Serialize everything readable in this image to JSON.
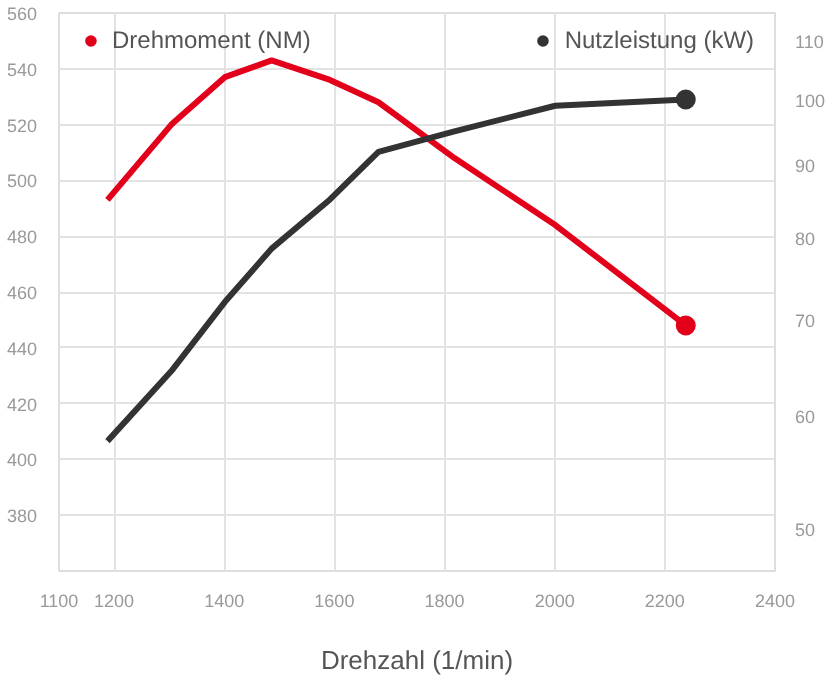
{
  "chart_data": {
    "type": "line",
    "xlabel": "Drehzahl (1/min)",
    "x": [
      1188,
      1304,
      1401,
      1486,
      1592,
      1680,
      1818,
      2001,
      2238
    ],
    "series": [
      {
        "color": "#e2001a",
        "values": [
          493,
          520,
          537,
          543,
          536,
          528,
          508,
          484,
          448
        ]
      },
      {
        "color": "#333333",
        "axis": "y2",
        "values": [
          57.6,
          64.5,
          72.1,
          78.6,
          85.1,
          91.9,
          95,
          99,
          100
        ]
      },
      {
        "name": "Drehmoment (NM)",
        "type": "scatter",
        "marker": "circle",
        "color": "#e2001a",
        "x": [
          2238
        ],
        "values": [
          448
        ]
      },
      {
        "name": "Nutzleistung (kW)",
        "type": "scatter",
        "marker": "circle",
        "color": "#333333",
        "axis": "y2",
        "x": [
          2238
        ],
        "values": [
          100
        ]
      }
    ],
    "xlim": [
      1100,
      2400
    ],
    "xticks": [
      1100,
      1200,
      1400,
      1600,
      1800,
      2000,
      2200,
      2400
    ],
    "ylim": [
      360,
      560
    ],
    "yticks": [
      380,
      400,
      420,
      440,
      460,
      480,
      500,
      520,
      540,
      560
    ],
    "y2lim": [
      46.7,
      115
    ],
    "y2ticks": [
      50,
      60,
      70,
      80,
      90,
      100,
      110
    ],
    "log": "y2",
    "grid": true,
    "legend": "top"
  }
}
